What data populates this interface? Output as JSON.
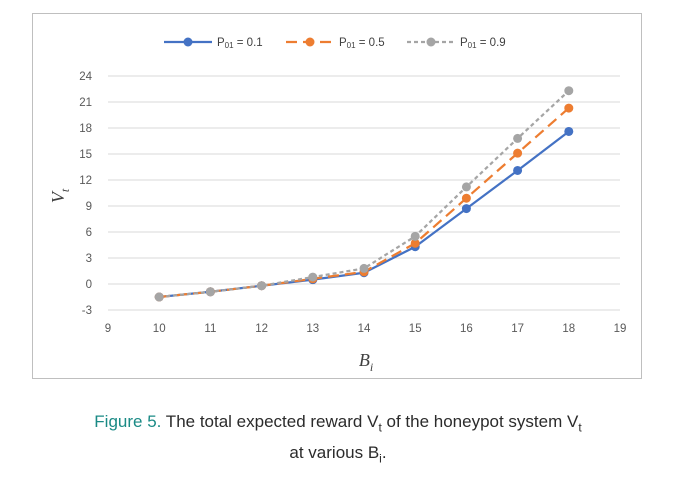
{
  "chart_data": {
    "type": "line",
    "xlabel": "B_i",
    "ylabel": "V_t",
    "xlim": [
      9,
      19
    ],
    "ylim": [
      -3,
      24
    ],
    "xticks": [
      "9",
      "10",
      "11",
      "12",
      "13",
      "14",
      "15",
      "16",
      "17",
      "18",
      "19"
    ],
    "yticks": [
      "24",
      "21",
      "18",
      "15",
      "12",
      "9",
      "6",
      "3",
      "0",
      "-3"
    ],
    "grid": true,
    "legend_position": "top",
    "x": [
      10,
      11,
      12,
      13,
      14,
      15,
      16,
      17,
      18
    ],
    "series": [
      {
        "name": "P01 = 0.1",
        "color": "#4472c4",
        "style": "solid",
        "values": [
          -1.5,
          -0.9,
          -0.2,
          0.5,
          1.3,
          4.3,
          8.7,
          13.1,
          17.6
        ]
      },
      {
        "name": "P01 = 0.5",
        "color": "#ed7d31",
        "style": "long-dash",
        "values": [
          -1.5,
          -0.9,
          -0.2,
          0.6,
          1.4,
          4.7,
          9.9,
          15.1,
          20.3
        ]
      },
      {
        "name": "P01 = 0.9",
        "color": "#a5a5a5",
        "style": "short-dash",
        "values": [
          -1.5,
          -0.9,
          -0.2,
          0.8,
          1.8,
          5.5,
          11.2,
          16.8,
          22.3
        ]
      }
    ]
  },
  "legend": {
    "items": [
      {
        "prefix": "P",
        "sub": "01",
        "suffix": " = 0.1"
      },
      {
        "prefix": "P",
        "sub": "01",
        "suffix": " = 0.5"
      },
      {
        "prefix": "P",
        "sub": "01",
        "suffix": " = 0.9"
      }
    ]
  },
  "axis_titles": {
    "x_main": "B",
    "x_sub": "i",
    "y_main": "V",
    "y_sub": "t"
  },
  "caption": {
    "label": "Figure 5.",
    "text1": " The total expected reward V",
    "sub1": "t",
    "text2": " of the honeypot system V",
    "sub2": "t",
    "line2_text": "at various B",
    "line2_sub": "i",
    "line2_end": "."
  }
}
